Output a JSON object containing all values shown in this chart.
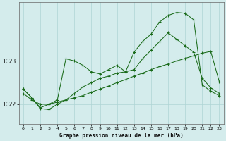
{
  "bg_color": "#d4ecec",
  "grid_color": "#aed4d4",
  "line_color": "#1a6b1a",
  "title": "Graphe pression niveau de la mer (hPa)",
  "xlim": [
    -0.5,
    23.5
  ],
  "ylim": [
    1021.55,
    1024.35
  ],
  "yticks": [
    1022,
    1023
  ],
  "xticks": [
    0,
    1,
    2,
    3,
    4,
    5,
    6,
    7,
    8,
    9,
    10,
    11,
    12,
    13,
    14,
    15,
    16,
    17,
    18,
    19,
    20,
    21,
    22,
    23
  ],
  "series": [
    {
      "x": [
        0,
        1,
        2,
        3,
        4,
        5,
        6,
        7,
        8,
        9,
        10,
        11,
        12,
        13,
        14,
        15,
        16,
        17,
        18,
        19,
        20,
        21,
        22,
        23
      ],
      "y": [
        1022.25,
        1022.1,
        1022.0,
        1022.0,
        1022.05,
        1022.1,
        1022.15,
        1022.2,
        1022.28,
        1022.35,
        1022.42,
        1022.5,
        1022.57,
        1022.65,
        1022.72,
        1022.8,
        1022.87,
        1022.93,
        1023.0,
        1023.06,
        1023.12,
        1023.18,
        1023.22,
        1022.52
      ]
    },
    {
      "x": [
        0,
        1,
        2,
        3,
        4,
        5,
        6,
        7,
        8,
        9,
        10,
        11,
        12,
        13,
        14,
        15,
        16,
        17,
        18,
        19,
        20,
        21,
        22,
        23
      ],
      "y": [
        1022.35,
        1022.15,
        1021.9,
        1021.88,
        1022.0,
        1022.1,
        1022.25,
        1022.4,
        1022.5,
        1022.6,
        1022.65,
        1022.72,
        1022.75,
        1022.8,
        1023.05,
        1023.25,
        1023.45,
        1023.65,
        1023.5,
        1023.35,
        1023.2,
        1022.6,
        1022.38,
        1022.25
      ]
    },
    {
      "x": [
        0,
        1,
        2,
        3,
        4,
        5,
        6,
        7,
        8,
        9,
        10,
        11,
        12,
        13,
        14,
        15,
        16,
        17,
        18,
        19,
        20,
        21,
        22,
        23
      ],
      "y": [
        1022.35,
        1022.15,
        1021.92,
        1022.0,
        1022.1,
        1023.05,
        1023.0,
        1022.9,
        1022.75,
        1022.7,
        1022.8,
        1022.9,
        1022.75,
        1023.2,
        1023.45,
        1023.62,
        1023.9,
        1024.05,
        1024.12,
        1024.1,
        1023.95,
        1022.45,
        1022.3,
        1022.2
      ]
    }
  ]
}
